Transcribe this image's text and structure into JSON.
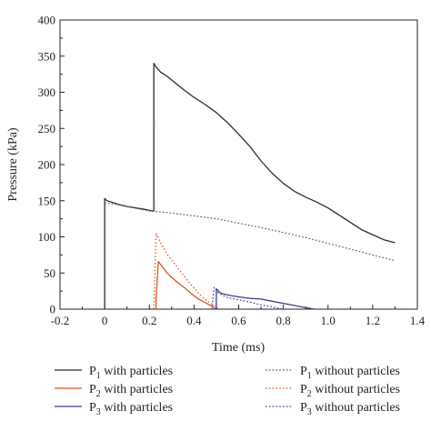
{
  "chart_data": {
    "type": "line",
    "xlabel": "Time (ms)",
    "ylabel": "Pressure (kPa)",
    "xlim": [
      -0.2,
      1.4
    ],
    "ylim": [
      0,
      400
    ],
    "xticks": [
      "-0.2",
      "0",
      "0.2",
      "0.4",
      "0.6",
      "0.8",
      "1.0",
      "1.2",
      "1.4"
    ],
    "yticks": [
      "0",
      "50",
      "100",
      "150",
      "200",
      "250",
      "300",
      "350",
      "400"
    ],
    "grid": false,
    "legend_position": "bottom",
    "series": [
      {
        "legend": {
          "sym": "P",
          "sub": "1",
          "text": " with particles"
        },
        "color": "#2b2b2b",
        "dash": "solid",
        "points": [
          [
            0.0,
            0
          ],
          [
            0.0,
            153
          ],
          [
            0.01,
            150
          ],
          [
            0.03,
            148
          ],
          [
            0.06,
            145
          ],
          [
            0.1,
            142
          ],
          [
            0.14,
            140
          ],
          [
            0.18,
            138
          ],
          [
            0.21,
            136
          ],
          [
            0.22,
            136
          ],
          [
            0.22,
            340
          ],
          [
            0.23,
            335
          ],
          [
            0.25,
            328
          ],
          [
            0.28,
            322
          ],
          [
            0.32,
            312
          ],
          [
            0.36,
            302
          ],
          [
            0.4,
            293
          ],
          [
            0.45,
            283
          ],
          [
            0.5,
            272
          ],
          [
            0.55,
            258
          ],
          [
            0.6,
            242
          ],
          [
            0.65,
            225
          ],
          [
            0.7,
            205
          ],
          [
            0.75,
            188
          ],
          [
            0.8,
            174
          ],
          [
            0.85,
            163
          ],
          [
            0.9,
            155
          ],
          [
            0.95,
            148
          ],
          [
            1.0,
            140
          ],
          [
            1.05,
            130
          ],
          [
            1.1,
            120
          ],
          [
            1.15,
            110
          ],
          [
            1.2,
            103
          ],
          [
            1.25,
            96
          ],
          [
            1.3,
            92
          ]
        ]
      },
      {
        "legend": {
          "sym": "P",
          "sub": "1",
          "text": " without particles"
        },
        "color": "#555555",
        "dash": "dotted",
        "points": [
          [
            0.0,
            147
          ],
          [
            0.05,
            145
          ],
          [
            0.1,
            142
          ],
          [
            0.15,
            139
          ],
          [
            0.2,
            136
          ],
          [
            0.3,
            133
          ],
          [
            0.4,
            129
          ],
          [
            0.5,
            125
          ],
          [
            0.6,
            119
          ],
          [
            0.7,
            113
          ],
          [
            0.8,
            106
          ],
          [
            0.9,
            99
          ],
          [
            1.0,
            91
          ],
          [
            1.1,
            83
          ],
          [
            1.2,
            75
          ],
          [
            1.3,
            67
          ]
        ]
      },
      {
        "legend": {
          "sym": "P",
          "sub": "2",
          "text": " with particles"
        },
        "color": "#d2591e",
        "dash": "solid",
        "points": [
          [
            0.23,
            0
          ],
          [
            0.23,
            12
          ],
          [
            0.24,
            66
          ],
          [
            0.26,
            58
          ],
          [
            0.28,
            50
          ],
          [
            0.3,
            44
          ],
          [
            0.33,
            36
          ],
          [
            0.36,
            29
          ],
          [
            0.39,
            21
          ],
          [
            0.42,
            14
          ],
          [
            0.45,
            9
          ],
          [
            0.48,
            4
          ],
          [
            0.5,
            0
          ]
        ]
      },
      {
        "legend": {
          "sym": "P",
          "sub": "2",
          "text": " without particles"
        },
        "color": "#d2591e",
        "dash": "dotted",
        "points": [
          [
            0.22,
            0
          ],
          [
            0.23,
            105
          ],
          [
            0.25,
            92
          ],
          [
            0.28,
            76
          ],
          [
            0.31,
            64
          ],
          [
            0.34,
            52
          ],
          [
            0.37,
            40
          ],
          [
            0.4,
            29
          ],
          [
            0.43,
            19
          ],
          [
            0.46,
            11
          ],
          [
            0.49,
            5
          ],
          [
            0.51,
            0
          ]
        ]
      },
      {
        "legend": {
          "sym": "P",
          "sub": "3",
          "text": " with particles"
        },
        "color": "#3b3b8f",
        "dash": "solid",
        "points": [
          [
            0.49,
            0
          ],
          [
            0.5,
            0
          ],
          [
            0.5,
            28
          ],
          [
            0.52,
            22
          ],
          [
            0.56,
            19
          ],
          [
            0.6,
            17
          ],
          [
            0.65,
            15
          ],
          [
            0.7,
            14
          ],
          [
            0.75,
            11
          ],
          [
            0.8,
            8
          ],
          [
            0.85,
            5
          ],
          [
            0.9,
            2
          ],
          [
            0.94,
            0
          ]
        ]
      },
      {
        "legend": {
          "sym": "P",
          "sub": "3",
          "text": " without particles"
        },
        "color": "#3b3b8f",
        "dash": "dotted",
        "points": [
          [
            0.48,
            0
          ],
          [
            0.49,
            30
          ],
          [
            0.51,
            22
          ],
          [
            0.55,
            16
          ],
          [
            0.6,
            13
          ],
          [
            0.65,
            10
          ],
          [
            0.7,
            6
          ],
          [
            0.75,
            3
          ],
          [
            0.8,
            0
          ]
        ]
      }
    ]
  }
}
